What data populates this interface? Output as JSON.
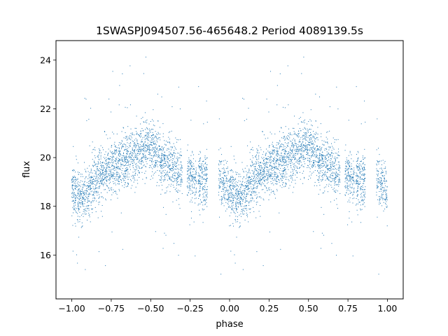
{
  "chart_data": {
    "type": "scatter",
    "title": "1SWASPJ094507.56-465648.2 Period 4089139.5s",
    "xlabel": "phase",
    "ylabel": "flux",
    "xlim": [
      -1.1,
      1.1
    ],
    "ylim": [
      14.2,
      24.8
    ],
    "xticks": [
      -1.0,
      -0.75,
      -0.5,
      -0.25,
      0.0,
      0.25,
      0.5,
      0.75,
      1.0
    ],
    "xtick_labels": [
      "−1.00",
      "−0.75",
      "−0.50",
      "−0.25",
      "0.00",
      "0.25",
      "0.50",
      "0.75",
      "1.00"
    ],
    "yticks": [
      16,
      18,
      20,
      22,
      24
    ],
    "ytick_labels": [
      "16",
      "18",
      "20",
      "22",
      "24"
    ],
    "grid": false,
    "marker_color": "#1f77b4",
    "trend": {
      "phase": [
        0.0,
        0.05,
        0.1,
        0.15,
        0.2,
        0.25,
        0.3,
        0.35,
        0.4,
        0.45,
        0.5,
        0.55,
        0.6,
        0.65,
        0.7,
        0.75,
        0.8,
        0.85,
        0.9,
        0.95,
        1.0
      ],
      "flux": [
        18.7,
        18.2,
        18.6,
        19.2,
        19.4,
        19.5,
        19.8,
        19.9,
        20.1,
        20.3,
        20.4,
        20.1,
        19.8,
        19.6,
        19.3,
        19.2,
        19.1,
        19.0,
        19.0,
        18.9,
        18.7
      ]
    },
    "observed_phase_ranges": [
      [
        0.0,
        0.7
      ],
      [
        0.73,
        0.79
      ],
      [
        0.8,
        0.86
      ],
      [
        0.93,
        1.0
      ]
    ],
    "scatter_sigma": 0.55
  }
}
